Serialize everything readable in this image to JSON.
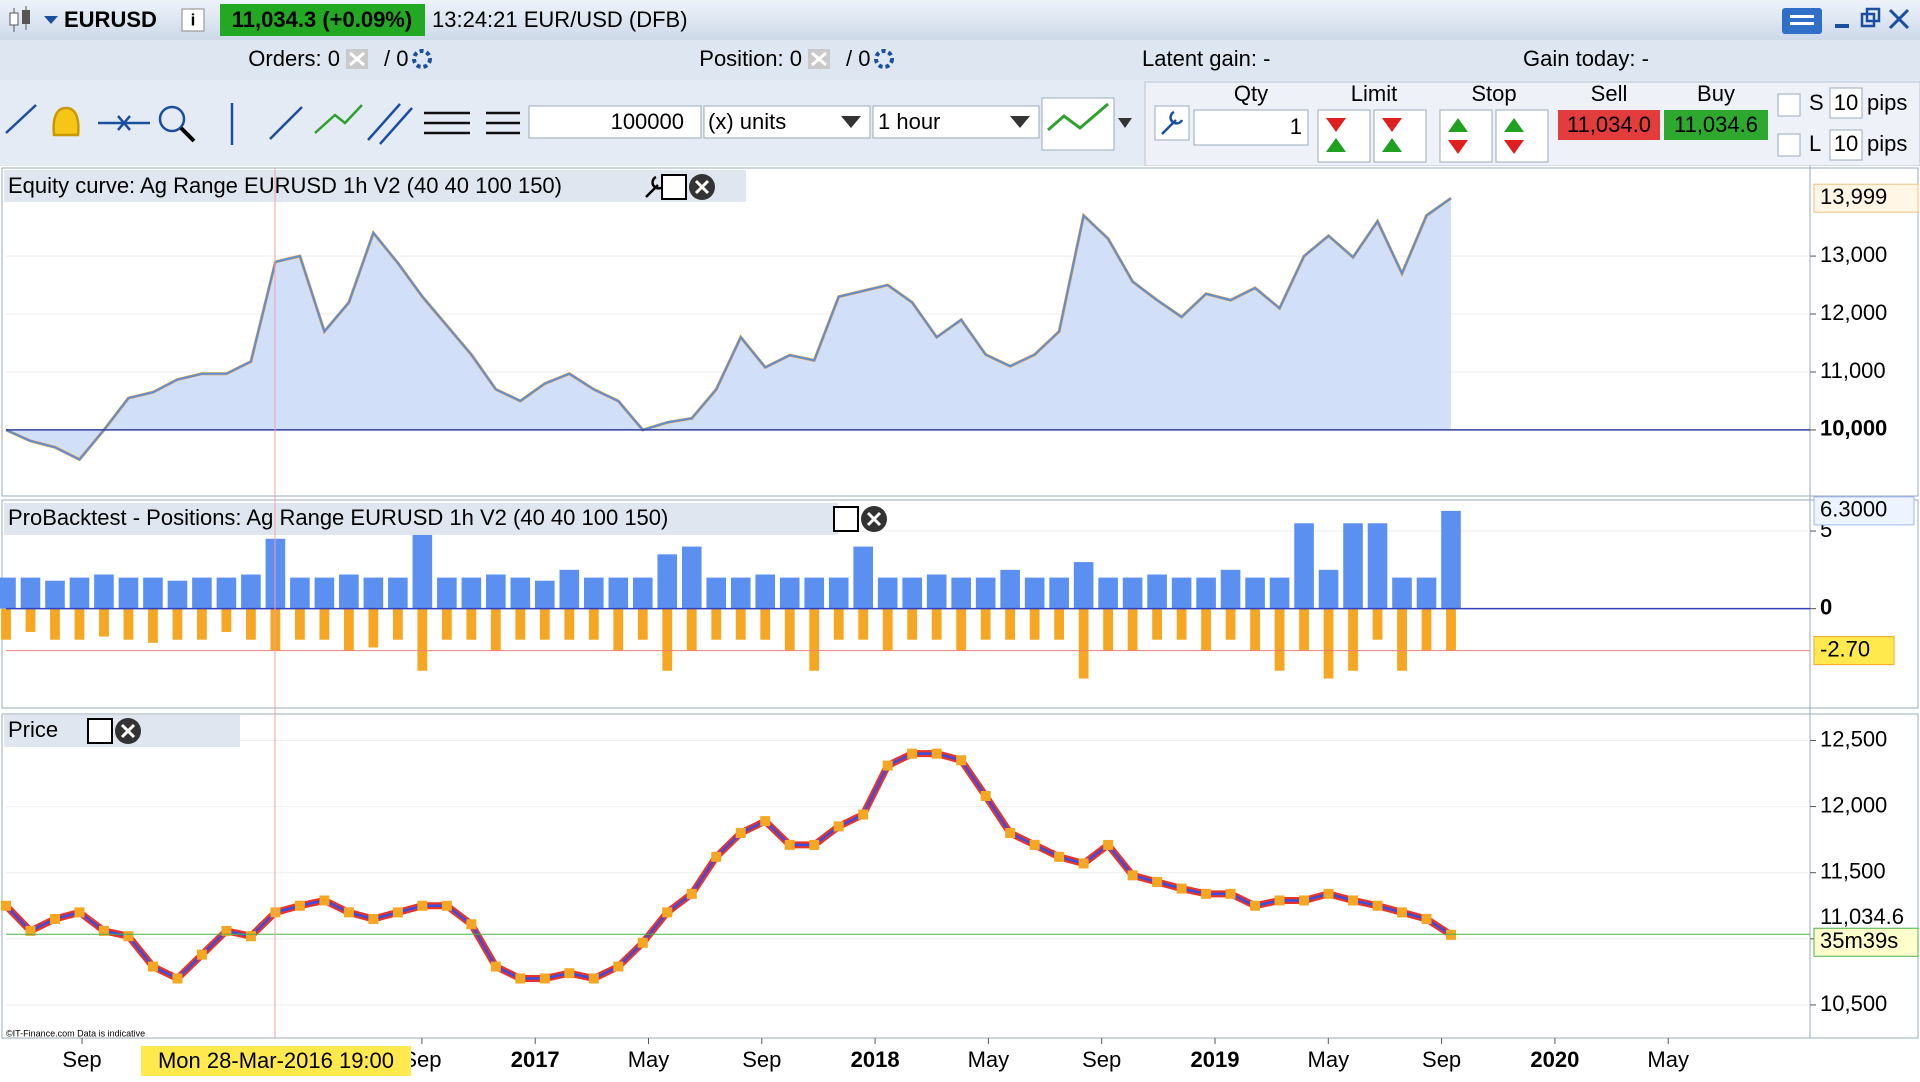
{
  "title_bar": {
    "symbol": "EURUSD",
    "quote": "11,034.3 (+0.09%)",
    "info": "13:24:21 EUR/USD (DFB)"
  },
  "status_bar": {
    "orders_label": "Orders: 0",
    "orders_sep": "/ 0",
    "position_label": "Position: 0",
    "position_sep": "/ 0",
    "latent_gain": "Latent gain: -",
    "gain_today": "Gain today: -"
  },
  "toolbar": {
    "quantity": "100000",
    "units": "(x) units",
    "timeframe": "1 hour",
    "qty_label": "Qty",
    "qty": "1",
    "limit_label": "Limit",
    "stop_label": "Stop",
    "sell_label": "Sell",
    "buy_label": "Buy",
    "sell_price": "11,034.0",
    "buy_price": "11,034.6",
    "s_label": "S",
    "s_pips": "10",
    "l_label": "L",
    "l_pips": "10",
    "pips_label": "pips"
  },
  "x_axis": {
    "labels": [
      "Sep",
      null,
      null,
      "Sep",
      "2017",
      "May",
      "Sep",
      "2018",
      "May",
      "Sep",
      "2019",
      "May",
      "Sep",
      "2020",
      "May"
    ],
    "cursor_label": "Mon 28-Mar-2016 19:00"
  },
  "equity": {
    "title": "Equity curve: Ag Range EURUSD 1h V2 (40 40 100 150)",
    "values": [
      10000,
      9810,
      9700,
      9490,
      10000,
      10550,
      10650,
      10870,
      10970,
      10970,
      11180,
      12900,
      13000,
      11700,
      12200,
      13400,
      12880,
      12300,
      11800,
      11300,
      10700,
      10500,
      10800,
      10970,
      10700,
      10500,
      10000,
      10130,
      10200,
      10700,
      11600,
      11080,
      11290,
      11200,
      12300,
      12400,
      12500,
      12200,
      11600,
      11900,
      11300,
      11100,
      11300,
      11700,
      13700,
      13300,
      12560,
      12240,
      11950,
      12350,
      12240,
      12450,
      12100,
      13000,
      13350,
      12980,
      13600,
      12700,
      13700,
      13999
    ],
    "ylim": [
      8860,
      14520
    ],
    "yticks": [
      {
        "value": 10000,
        "label": "10,000"
      },
      {
        "value": 11000,
        "label": "11,000"
      },
      {
        "value": 12000,
        "label": "12,000"
      },
      {
        "value": 13000,
        "label": "13,000"
      }
    ],
    "last": {
      "value": 13999,
      "label": "13,999"
    }
  },
  "positions": {
    "title": "ProBacktest - Positions: Ag Range EURUSD 1h V2 (40 40 100 150)",
    "long": [
      2,
      2,
      1.8,
      2,
      2.2,
      2,
      2,
      1.8,
      2,
      2,
      2.2,
      4.5,
      2,
      2,
      2.2,
      2,
      2,
      5,
      2,
      2,
      2.2,
      2,
      1.8,
      2.5,
      2,
      2,
      2,
      3.5,
      4,
      2,
      2,
      2.2,
      2,
      2,
      2,
      4,
      2,
      2,
      2.2,
      2,
      2,
      2.5,
      2,
      2,
      3,
      2,
      2,
      2.2,
      2,
      2,
      2.5,
      2,
      2,
      5.5,
      2.5,
      5.5,
      5.5,
      2,
      2,
      6.3
    ],
    "short": [
      -2,
      -1.5,
      -2,
      -2,
      -1.8,
      -2,
      -2.2,
      -2,
      -2,
      -1.5,
      -2,
      -2.7,
      -2,
      -2,
      -2.7,
      -2.5,
      -2,
      -4,
      -2,
      -2,
      -2.7,
      -2,
      -2,
      -2,
      -2,
      -2.7,
      -2,
      -4,
      -2.7,
      -2,
      -2,
      -2,
      -2.7,
      -4,
      -2,
      -2,
      -2.7,
      -2,
      -2,
      -2.7,
      -2,
      -2,
      -2,
      -2,
      -4.5,
      -2.7,
      -2.7,
      -2,
      -2,
      -2.7,
      -2,
      -2.7,
      -4,
      -2.7,
      -4.5,
      -4,
      -2,
      -4,
      -2.7,
      -2.7
    ],
    "ylim": [
      -6.4,
      7.0
    ],
    "yticks": [
      0,
      5
    ],
    "long_marker": {
      "value": 6.3,
      "label": "6.3000"
    },
    "short_marker": {
      "value": -2.7,
      "label": "-2.70"
    }
  },
  "price": {
    "title": "Price",
    "values": [
      11250,
      11060,
      11150,
      11200,
      11060,
      11020,
      10790,
      10700,
      10880,
      11060,
      11020,
      11200,
      11250,
      11290,
      11200,
      11150,
      11200,
      11250,
      11250,
      11110,
      10790,
      10700,
      10700,
      10740,
      10700,
      10790,
      10970,
      11200,
      11340,
      11620,
      11800,
      11890,
      11710,
      11710,
      11850,
      11940,
      12310,
      12400,
      12400,
      12350,
      12080,
      11800,
      11710,
      11620,
      11570,
      11710,
      11480,
      11430,
      11380,
      11340,
      11340,
      11250,
      11290,
      11290,
      11340,
      11290,
      11250,
      11200,
      11150,
      11030
    ],
    "ylim": [
      10250,
      12700
    ],
    "yticks": [
      {
        "value": 10500,
        "label": "10,500"
      },
      {
        "value": 11000,
        "label": "11,000"
      },
      {
        "value": 11500,
        "label": "11,500"
      },
      {
        "value": 12000,
        "label": "12,000"
      },
      {
        "value": 12500,
        "label": "12,500"
      }
    ],
    "last": {
      "value": 11034.6,
      "label": "11,034.6"
    },
    "countdown": "35m39s"
  },
  "copyright": "©IT-Finance.com Data is indicative"
}
